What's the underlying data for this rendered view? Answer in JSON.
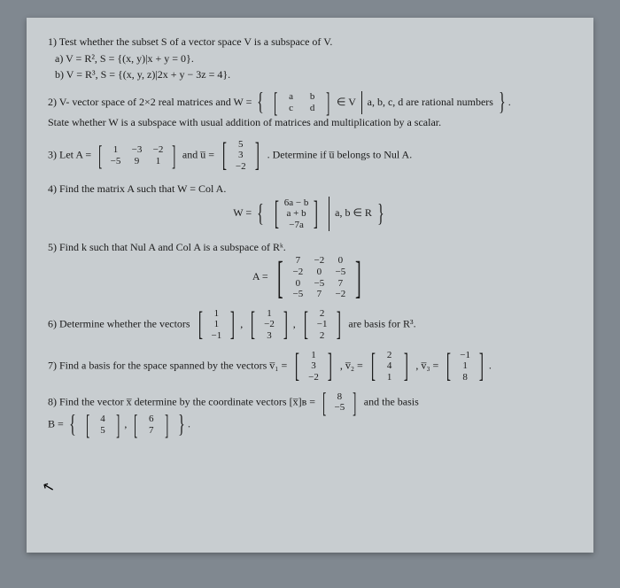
{
  "q1": {
    "text": "1) Test whether the subset S of a vector space V is a subspace of V.",
    "a": "a) V = R², S = {(x, y)|x + y = 0}.",
    "b": "b) V = R³, S = {(x, y, z)|2x + y − 3z = 4}."
  },
  "q2": {
    "lead": "2) V- vector space of 2×2 real matrices and W =",
    "cond": "a, b, c, d are rational numbers",
    "tail": "State whether W is a subspace with usual addition of matrices and multiplication by a scalar.",
    "m": [
      [
        "a",
        "b"
      ],
      [
        "c",
        "d"
      ]
    ],
    "inV": "∈ V"
  },
  "q3": {
    "lead": "3) Let A =",
    "A": [
      [
        "1",
        "−3",
        "−2"
      ],
      [
        "−5",
        "9",
        "1"
      ]
    ],
    "mid": "and u̅ =",
    "u": [
      [
        "5"
      ],
      [
        "3"
      ],
      [
        "−2"
      ]
    ],
    "tail": ". Determine if u̅ belongs to Nul A."
  },
  "q4": {
    "text": "4) Find the matrix A such that W = Col A.",
    "Wlabel": "W =",
    "col": [
      [
        "6a − b"
      ],
      [
        "a + b"
      ],
      [
        "−7a"
      ]
    ],
    "cond": "a, b ∈ R"
  },
  "q5": {
    "text": "5) Find k such that Nul A and Col A is a subspace of Rᵏ.",
    "Alabel": "A =",
    "A": [
      [
        "7",
        "−2",
        "0"
      ],
      [
        "−2",
        "0",
        "−5"
      ],
      [
        "0",
        "−5",
        "7"
      ],
      [
        "−5",
        "7",
        "−2"
      ]
    ]
  },
  "q6": {
    "lead": "6) Determine whether the vectors",
    "v1": [
      [
        "1"
      ],
      [
        "1"
      ],
      [
        "−1"
      ]
    ],
    "v2": [
      [
        "1"
      ],
      [
        "−2"
      ],
      [
        "3"
      ]
    ],
    "v3": [
      [
        "2"
      ],
      [
        "−1"
      ],
      [
        "2"
      ]
    ],
    "tail": "are basis for R³."
  },
  "q7": {
    "lead": "7) Find a basis for the space spanned by the vectors v̅₁ =",
    "v1": [
      [
        "1"
      ],
      [
        "3"
      ],
      [
        "−2"
      ]
    ],
    "l2": ", v̅₂ =",
    "v2": [
      [
        "2"
      ],
      [
        "4"
      ],
      [
        "1"
      ]
    ],
    "l3": ", v̅₃ =",
    "v3": [
      [
        "−1"
      ],
      [
        "1"
      ],
      [
        "8"
      ]
    ]
  },
  "q8": {
    "lead": "8) Find the vector x̅ determine by the coordinate vectors [x̅]ʙ =",
    "coord": [
      [
        "8"
      ],
      [
        "−5"
      ]
    ],
    "tail": "and the basis",
    "Blabel": "B =",
    "b1": [
      [
        "4"
      ],
      [
        "5"
      ]
    ],
    "b2": [
      [
        "6"
      ],
      [
        "7"
      ]
    ]
  }
}
